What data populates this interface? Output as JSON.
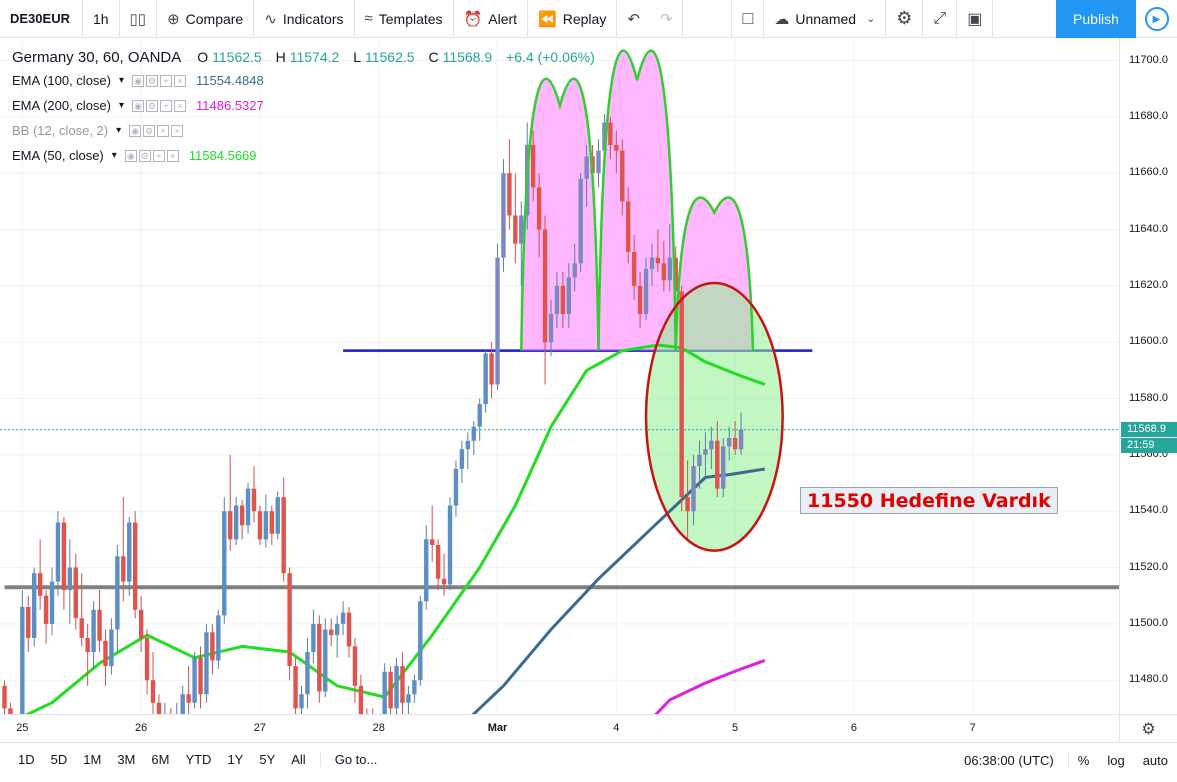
{
  "toolbar": {
    "symbol": "DE30EUR",
    "interval": "1h",
    "compare": "Compare",
    "indicators": "Indicators",
    "templates": "Templates",
    "alert": "Alert",
    "replay": "Replay",
    "layout_name": "Unnamed",
    "publish": "Publish"
  },
  "legend": {
    "title": "Germany 30, 60, OANDA",
    "o_label": "O",
    "o": "11562.5",
    "h_label": "H",
    "h": "11574.2",
    "l_label": "L",
    "l": "11562.5",
    "c_label": "C",
    "c": "11568.9",
    "change": "+6.4 (+0.06%)",
    "indicators": [
      {
        "name": "EMA (100, close)",
        "value": "11554.4848",
        "color": "#3a6b8f"
      },
      {
        "name": "EMA (200, close)",
        "value": "11486.5327",
        "color": "#e020e0"
      },
      {
        "name": "BB (12, close, 2)",
        "value": "",
        "color": "#9598a1"
      },
      {
        "name": "EMA (50, close)",
        "value": "11584.5669",
        "color": "#22dd22"
      }
    ]
  },
  "price_tag": {
    "value": "11568.9",
    "countdown": "21:59"
  },
  "annotation": "11550 Hedefine Vardık",
  "bottom": {
    "ranges": [
      "1D",
      "5D",
      "1M",
      "3M",
      "6M",
      "YTD",
      "1Y",
      "5Y",
      "All"
    ],
    "goto": "Go to...",
    "time": "06:38:00 (UTC)",
    "percent": "%",
    "log": "log",
    "auto": "auto"
  },
  "colors": {
    "up": "#26a69a",
    "down": "#ef5350",
    "accent": "#2196f3"
  },
  "chart_data": {
    "type": "candlestick",
    "title": "Germany 30, 60, OANDA",
    "ylim": [
      11468,
      11708
    ],
    "y_ticks": [
      11480,
      11500,
      11520,
      11540,
      11560,
      11580,
      11600,
      11620,
      11640,
      11660,
      11680,
      11700
    ],
    "x_ticks": [
      {
        "label": "25",
        "bar": 3
      },
      {
        "label": "26",
        "bar": 23
      },
      {
        "label": "27",
        "bar": 43
      },
      {
        "label": "28",
        "bar": 63
      },
      {
        "label": "Mar",
        "bar": 83
      },
      {
        "label": "4",
        "bar": 103
      },
      {
        "label": "5",
        "bar": 123
      },
      {
        "label": "6",
        "bar": 143
      },
      {
        "label": "7",
        "bar": 163
      }
    ],
    "horizontal_lines": [
      {
        "name": "neckline",
        "y": 11597,
        "color": "#1a1ad0",
        "from_bar": 57,
        "to_bar": 136
      },
      {
        "name": "support",
        "y": 11513,
        "color": "#808080",
        "from_bar": 0,
        "to_bar": 188
      }
    ],
    "candles": [
      [
        11478,
        11480,
        11466,
        11470
      ],
      [
        11470,
        11472,
        11462,
        11465
      ],
      [
        11465,
        11468,
        11460,
        11463
      ],
      [
        11467,
        11512,
        11465,
        11506
      ],
      [
        11506,
        11510,
        11490,
        11495
      ],
      [
        11495,
        11520,
        11492,
        11518
      ],
      [
        11518,
        11530,
        11505,
        11510
      ],
      [
        11510,
        11512,
        11493,
        11500
      ],
      [
        11500,
        11520,
        11496,
        11515
      ],
      [
        11515,
        11540,
        11510,
        11536
      ],
      [
        11536,
        11538,
        11505,
        11512
      ],
      [
        11512,
        11530,
        11500,
        11520
      ],
      [
        11520,
        11525,
        11498,
        11502
      ],
      [
        11502,
        11518,
        11492,
        11495
      ],
      [
        11495,
        11500,
        11478,
        11490
      ],
      [
        11490,
        11508,
        11484,
        11505
      ],
      [
        11505,
        11512,
        11490,
        11494
      ],
      [
        11494,
        11498,
        11478,
        11485
      ],
      [
        11485,
        11502,
        11482,
        11498
      ],
      [
        11498,
        11528,
        11490,
        11524
      ],
      [
        11524,
        11545,
        11508,
        11515
      ],
      [
        11515,
        11538,
        11510,
        11536
      ],
      [
        11536,
        11540,
        11502,
        11505
      ],
      [
        11505,
        11510,
        11490,
        11495
      ],
      [
        11495,
        11498,
        11475,
        11480
      ],
      [
        11480,
        11490,
        11465,
        11472
      ],
      [
        11472,
        11475,
        11462,
        11466
      ],
      [
        11466,
        11472,
        11460,
        11468
      ],
      [
        11468,
        11470,
        11461,
        11464
      ],
      [
        11464,
        11472,
        11460,
        11468
      ],
      [
        11468,
        11478,
        11462,
        11475
      ],
      [
        11475,
        11485,
        11468,
        11472
      ],
      [
        11472,
        11490,
        11470,
        11488
      ],
      [
        11488,
        11492,
        11470,
        11475
      ],
      [
        11475,
        11500,
        11472,
        11497
      ],
      [
        11497,
        11500,
        11482,
        11487
      ],
      [
        11487,
        11505,
        11484,
        11503
      ],
      [
        11503,
        11545,
        11500,
        11540
      ],
      [
        11540,
        11560,
        11526,
        11530
      ],
      [
        11530,
        11545,
        11528,
        11542
      ],
      [
        11542,
        11544,
        11530,
        11535
      ],
      [
        11535,
        11550,
        11532,
        11548
      ],
      [
        11548,
        11556,
        11536,
        11540
      ],
      [
        11540,
        11542,
        11528,
        11530
      ],
      [
        11530,
        11546,
        11527,
        11540
      ],
      [
        11540,
        11542,
        11528,
        11532
      ],
      [
        11532,
        11547,
        11530,
        11545
      ],
      [
        11545,
        11552,
        11515,
        11518
      ],
      [
        11518,
        11520,
        11480,
        11485
      ],
      [
        11485,
        11488,
        11465,
        11470
      ],
      [
        11470,
        11478,
        11462,
        11475
      ],
      [
        11475,
        11495,
        11470,
        11490
      ],
      [
        11490,
        11505,
        11486,
        11500
      ],
      [
        11500,
        11503,
        11472,
        11476
      ],
      [
        11476,
        11502,
        11474,
        11498
      ],
      [
        11498,
        11502,
        11492,
        11496
      ],
      [
        11496,
        11503,
        11488,
        11500
      ],
      [
        11500,
        11508,
        11496,
        11504
      ],
      [
        11504,
        11506,
        11488,
        11492
      ],
      [
        11492,
        11495,
        11472,
        11478
      ],
      [
        11478,
        11482,
        11462,
        11466
      ],
      [
        11466,
        11470,
        11460,
        11464
      ],
      [
        11464,
        11470,
        11460,
        11462
      ],
      [
        11462,
        11468,
        11461,
        11466
      ],
      [
        11466,
        11486,
        11463,
        11483
      ],
      [
        11483,
        11485,
        11465,
        11470
      ],
      [
        11470,
        11488,
        11468,
        11485
      ],
      [
        11485,
        11490,
        11468,
        11472
      ],
      [
        11472,
        11478,
        11462,
        11475
      ],
      [
        11475,
        11482,
        11472,
        11480
      ],
      [
        11480,
        11510,
        11478,
        11508
      ],
      [
        11508,
        11535,
        11505,
        11530
      ],
      [
        11530,
        11542,
        11522,
        11528
      ],
      [
        11528,
        11530,
        11512,
        11516
      ],
      [
        11516,
        11525,
        11510,
        11514
      ],
      [
        11514,
        11545,
        11512,
        11542
      ],
      [
        11542,
        11558,
        11538,
        11555
      ],
      [
        11555,
        11565,
        11550,
        11562
      ],
      [
        11562,
        11568,
        11555,
        11565
      ],
      [
        11565,
        11572,
        11560,
        11570
      ],
      [
        11570,
        11580,
        11565,
        11578
      ],
      [
        11578,
        11597,
        11575,
        11596
      ],
      [
        11596,
        11600,
        11580,
        11585
      ],
      [
        11585,
        11635,
        11583,
        11630
      ],
      [
        11630,
        11665,
        11625,
        11660
      ],
      [
        11660,
        11672,
        11640,
        11645
      ],
      [
        11645,
        11660,
        11628,
        11635
      ],
      [
        11635,
        11650,
        11620,
        11645
      ],
      [
        11645,
        11678,
        11640,
        11670
      ],
      [
        11670,
        11675,
        11650,
        11655
      ],
      [
        11655,
        11660,
        11630,
        11640
      ],
      [
        11640,
        11645,
        11585,
        11600
      ],
      [
        11600,
        11615,
        11595,
        11610
      ],
      [
        11610,
        11625,
        11605,
        11620
      ],
      [
        11620,
        11625,
        11605,
        11610
      ],
      [
        11610,
        11628,
        11605,
        11623
      ],
      [
        11623,
        11635,
        11618,
        11628
      ],
      [
        11628,
        11660,
        11625,
        11658
      ],
      [
        11658,
        11670,
        11648,
        11666
      ],
      [
        11666,
        11670,
        11655,
        11660
      ],
      [
        11660,
        11672,
        11655,
        11668
      ],
      [
        11668,
        11681,
        11662,
        11678
      ],
      [
        11678,
        11680,
        11665,
        11670
      ],
      [
        11670,
        11675,
        11660,
        11668
      ],
      [
        11668,
        11672,
        11645,
        11650
      ],
      [
        11650,
        11655,
        11628,
        11632
      ],
      [
        11632,
        11638,
        11615,
        11620
      ],
      [
        11620,
        11625,
        11605,
        11610
      ],
      [
        11610,
        11630,
        11608,
        11626
      ],
      [
        11626,
        11635,
        11620,
        11630
      ],
      [
        11630,
        11640,
        11625,
        11628
      ],
      [
        11628,
        11636,
        11618,
        11622
      ],
      [
        11622,
        11642,
        11618,
        11630
      ],
      [
        11630,
        11634,
        11612,
        11618
      ],
      [
        11618,
        11620,
        11540,
        11545
      ],
      [
        11545,
        11558,
        11530,
        11540
      ],
      [
        11540,
        11560,
        11535,
        11556
      ],
      [
        11556,
        11565,
        11548,
        11560
      ],
      [
        11560,
        11568,
        11552,
        11562
      ],
      [
        11562,
        11570,
        11555,
        11565
      ],
      [
        11565,
        11572,
        11545,
        11548
      ],
      [
        11548,
        11566,
        11545,
        11563
      ],
      [
        11563,
        11570,
        11558,
        11566
      ],
      [
        11566,
        11572,
        11560,
        11562
      ],
      [
        11562,
        11575,
        11560,
        11569
      ]
    ],
    "ema_50": [
      [
        0,
        11464
      ],
      [
        8,
        11472
      ],
      [
        16,
        11486
      ],
      [
        24,
        11496
      ],
      [
        32,
        11488
      ],
      [
        40,
        11492
      ],
      [
        48,
        11490
      ],
      [
        56,
        11478
      ],
      [
        64,
        11474
      ],
      [
        72,
        11496
      ],
      [
        80,
        11520
      ],
      [
        86,
        11542
      ],
      [
        92,
        11570
      ],
      [
        98,
        11590
      ],
      [
        104,
        11597
      ],
      [
        110,
        11599
      ],
      [
        114,
        11598
      ],
      [
        118,
        11593
      ],
      [
        124,
        11588
      ],
      [
        128,
        11585
      ]
    ],
    "ema_100": [
      [
        76,
        11462
      ],
      [
        84,
        11478
      ],
      [
        92,
        11498
      ],
      [
        100,
        11516
      ],
      [
        108,
        11532
      ],
      [
        114,
        11544
      ],
      [
        118,
        11552
      ],
      [
        122,
        11553
      ],
      [
        128,
        11555
      ]
    ],
    "ema_200": [
      [
        107,
        11462
      ],
      [
        112,
        11473
      ],
      [
        118,
        11479
      ],
      [
        124,
        11484
      ],
      [
        128,
        11487
      ]
    ],
    "patterns": [
      {
        "name": "left-shoulder",
        "from_bar": 87,
        "to_bar": 100,
        "base": 11597,
        "top": 11684,
        "color": "#ff88ff"
      },
      {
        "name": "head",
        "from_bar": 100,
        "to_bar": 113,
        "base": 11597,
        "top": 11693,
        "color": "#ff88ff"
      },
      {
        "name": "right-shoulder",
        "from_bar": 113,
        "to_bar": 126,
        "base": 11597,
        "top": 11646,
        "color": "#ff88ff"
      },
      {
        "name": "target-zone",
        "from_bar": 108,
        "to_bar": 131,
        "base": 11526,
        "top": 11621,
        "color": "#90ee90"
      }
    ]
  }
}
